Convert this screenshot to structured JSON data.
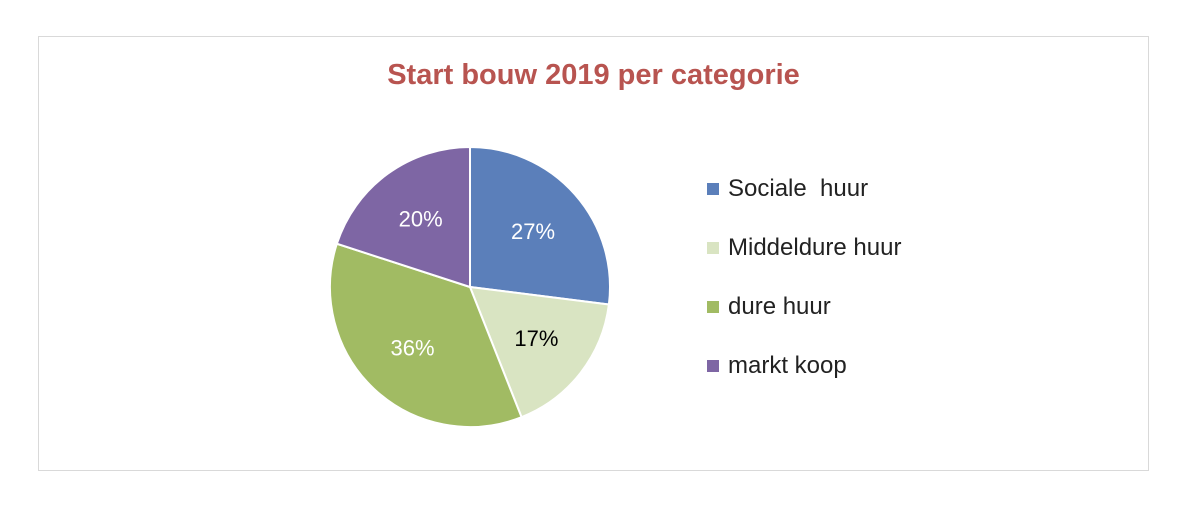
{
  "chart_data": {
    "type": "pie",
    "title": "Start bouw 2019 per categorie",
    "categories": [
      "Sociale  huur",
      "Middeldure huur",
      "dure huur",
      "markt koop"
    ],
    "values": [
      27,
      17,
      36,
      20
    ],
    "data_labels": [
      "27%",
      "17%",
      "36%",
      "20%"
    ],
    "colors": [
      "#5b7fba",
      "#d9e4c2",
      "#a1bb63",
      "#7e66a4"
    ],
    "label_colors": [
      "#ffffff",
      "#000000",
      "#ffffff",
      "#ffffff"
    ],
    "legend_position": "right",
    "start_angle": "12 o'clock, clockwise"
  }
}
